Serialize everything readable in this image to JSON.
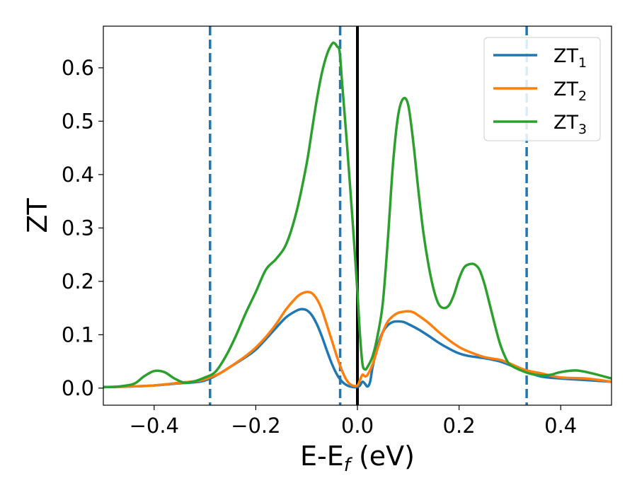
{
  "chart_data": {
    "type": "line",
    "xlabel_main": "E-E",
    "xlabel_sub": "f",
    "xlabel_unit": " (eV)",
    "ylabel": "ZT",
    "xlim": [
      -0.5,
      0.5
    ],
    "ylim": [
      -0.032,
      0.678
    ],
    "xticks": [
      -0.4,
      -0.2,
      0.0,
      0.2,
      0.4
    ],
    "xtick_labels": [
      "−0.4",
      "−0.2",
      "0.0",
      "0.2",
      "0.4"
    ],
    "yticks": [
      0.0,
      0.1,
      0.2,
      0.3,
      0.4,
      0.5,
      0.6
    ],
    "ytick_labels": [
      "0.0",
      "0.1",
      "0.2",
      "0.3",
      "0.4",
      "0.5",
      "0.6"
    ],
    "grid": false,
    "legend_position": "top-right",
    "vlines": [
      {
        "x": -0.29,
        "style": "dashed",
        "color": "#1f77b4"
      },
      {
        "x": -0.034,
        "style": "dashed",
        "color": "#1f77b4"
      },
      {
        "x": 0.0,
        "style": "solid",
        "color": "#000000"
      },
      {
        "x": 0.333,
        "style": "dashed",
        "color": "#1f77b4"
      }
    ],
    "series": [
      {
        "name": "ZT",
        "sub": "1",
        "color": "#1f77b4",
        "x": [
          -0.5,
          -0.45,
          -0.4,
          -0.35,
          -0.31,
          -0.29,
          -0.27,
          -0.25,
          -0.22,
          -0.2,
          -0.18,
          -0.16,
          -0.14,
          -0.12,
          -0.11,
          -0.1,
          -0.09,
          -0.08,
          -0.07,
          -0.06,
          -0.05,
          -0.04,
          -0.03,
          -0.02,
          -0.01,
          0.0,
          0.005,
          0.01,
          0.015,
          0.02,
          0.025,
          0.03,
          0.04,
          0.05,
          0.06,
          0.07,
          0.08,
          0.09,
          0.1,
          0.12,
          0.14,
          0.16,
          0.18,
          0.2,
          0.22,
          0.25,
          0.28,
          0.3,
          0.33,
          0.36,
          0.4,
          0.45,
          0.5
        ],
        "y": [
          0.002,
          0.003,
          0.005,
          0.009,
          0.012,
          0.018,
          0.028,
          0.04,
          0.058,
          0.072,
          0.092,
          0.113,
          0.133,
          0.145,
          0.148,
          0.146,
          0.137,
          0.12,
          0.097,
          0.07,
          0.045,
          0.025,
          0.012,
          0.005,
          0.002,
          0.002,
          0.005,
          0.012,
          0.008,
          0.003,
          0.012,
          0.04,
          0.08,
          0.105,
          0.118,
          0.124,
          0.125,
          0.124,
          0.12,
          0.11,
          0.098,
          0.085,
          0.074,
          0.065,
          0.06,
          0.056,
          0.05,
          0.043,
          0.032,
          0.022,
          0.018,
          0.015,
          0.012
        ]
      },
      {
        "name": "ZT",
        "sub": "2",
        "color": "#ff7f0e",
        "x": [
          -0.5,
          -0.45,
          -0.4,
          -0.35,
          -0.31,
          -0.29,
          -0.27,
          -0.25,
          -0.22,
          -0.2,
          -0.18,
          -0.16,
          -0.14,
          -0.12,
          -0.11,
          -0.1,
          -0.09,
          -0.08,
          -0.07,
          -0.06,
          -0.05,
          -0.04,
          -0.03,
          -0.02,
          -0.01,
          0.0,
          0.005,
          0.01,
          0.015,
          0.02,
          0.03,
          0.04,
          0.05,
          0.06,
          0.07,
          0.08,
          0.09,
          0.1,
          0.11,
          0.12,
          0.14,
          0.16,
          0.18,
          0.2,
          0.22,
          0.25,
          0.28,
          0.3,
          0.33,
          0.36,
          0.4,
          0.45,
          0.5
        ],
        "y": [
          0.002,
          0.003,
          0.005,
          0.01,
          0.014,
          0.02,
          0.028,
          0.04,
          0.06,
          0.076,
          0.096,
          0.12,
          0.148,
          0.17,
          0.177,
          0.18,
          0.178,
          0.167,
          0.147,
          0.118,
          0.088,
          0.058,
          0.032,
          0.013,
          0.005,
          0.005,
          0.015,
          0.025,
          0.022,
          0.025,
          0.045,
          0.075,
          0.105,
          0.125,
          0.135,
          0.141,
          0.143,
          0.144,
          0.142,
          0.136,
          0.122,
          0.105,
          0.09,
          0.077,
          0.068,
          0.058,
          0.053,
          0.046,
          0.034,
          0.028,
          0.02,
          0.018,
          0.012
        ]
      },
      {
        "name": "ZT",
        "sub": "3",
        "color": "#2ca02c",
        "x": [
          -0.5,
          -0.47,
          -0.44,
          -0.42,
          -0.4,
          -0.38,
          -0.36,
          -0.34,
          -0.32,
          -0.3,
          -0.28,
          -0.26,
          -0.24,
          -0.22,
          -0.2,
          -0.18,
          -0.16,
          -0.14,
          -0.12,
          -0.1,
          -0.09,
          -0.08,
          -0.07,
          -0.06,
          -0.05,
          -0.045,
          -0.04,
          -0.035,
          -0.03,
          -0.02,
          -0.01,
          0.0,
          0.005,
          0.01,
          0.015,
          0.02,
          0.03,
          0.04,
          0.05,
          0.06,
          0.07,
          0.08,
          0.09,
          0.1,
          0.11,
          0.12,
          0.13,
          0.14,
          0.15,
          0.16,
          0.17,
          0.18,
          0.19,
          0.2,
          0.21,
          0.22,
          0.23,
          0.24,
          0.25,
          0.26,
          0.27,
          0.28,
          0.29,
          0.3,
          0.32,
          0.34,
          0.36,
          0.38,
          0.4,
          0.43,
          0.46,
          0.5
        ],
        "y": [
          0.002,
          0.003,
          0.008,
          0.022,
          0.032,
          0.03,
          0.018,
          0.01,
          0.013,
          0.02,
          0.03,
          0.058,
          0.096,
          0.14,
          0.18,
          0.222,
          0.242,
          0.27,
          0.33,
          0.42,
          0.48,
          0.54,
          0.59,
          0.625,
          0.645,
          0.646,
          0.64,
          0.63,
          0.57,
          0.45,
          0.32,
          0.18,
          0.1,
          0.045,
          0.035,
          0.04,
          0.06,
          0.1,
          0.16,
          0.28,
          0.42,
          0.51,
          0.542,
          0.53,
          0.46,
          0.37,
          0.29,
          0.23,
          0.185,
          0.157,
          0.15,
          0.155,
          0.175,
          0.205,
          0.226,
          0.232,
          0.232,
          0.222,
          0.195,
          0.158,
          0.12,
          0.085,
          0.06,
          0.044,
          0.034,
          0.027,
          0.024,
          0.025,
          0.03,
          0.033,
          0.028,
          0.018
        ]
      }
    ]
  }
}
